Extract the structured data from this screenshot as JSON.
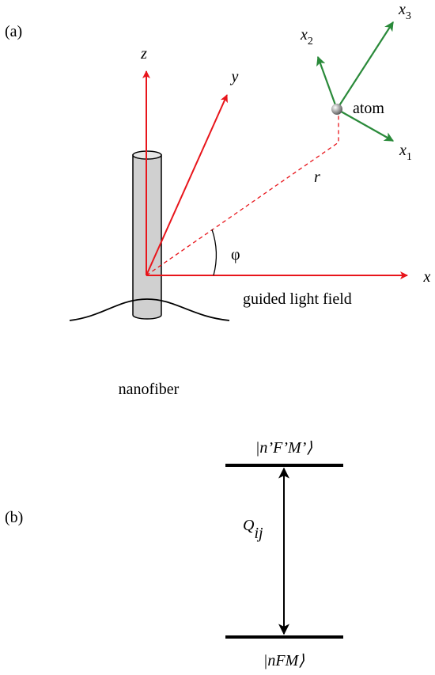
{
  "panel_a": {
    "label": "(a)",
    "axes": {
      "z": "z",
      "y": "y",
      "x": "x"
    },
    "atom_axes": {
      "x1": {
        "base": "x",
        "sub": "1"
      },
      "x2": {
        "base": "x",
        "sub": "2"
      },
      "x3": {
        "base": "x",
        "sub": "3"
      }
    },
    "atom": "atom",
    "r": "r",
    "phi": "φ",
    "field": "guided light field",
    "fiber": "nanofiber"
  },
  "panel_b": {
    "label": "(b)",
    "upper_level": "|n’F’M’⟩",
    "lower_level": "|nFM⟩",
    "transition": {
      "base": "Q",
      "sub": "ij"
    }
  }
}
